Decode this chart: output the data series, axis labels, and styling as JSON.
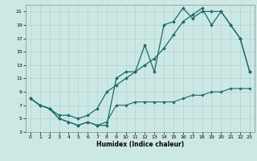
{
  "xlabel": "Humidex (Indice chaleur)",
  "bg_color": "#cce8e4",
  "grid_color": "#aacfcb",
  "line_color": "#1a6b6a",
  "xlim": [
    -0.5,
    23.5
  ],
  "ylim": [
    3,
    22
  ],
  "xticks": [
    0,
    1,
    2,
    3,
    4,
    5,
    6,
    7,
    8,
    9,
    10,
    11,
    12,
    13,
    14,
    15,
    16,
    17,
    18,
    19,
    20,
    21,
    22,
    23
  ],
  "yticks": [
    3,
    5,
    7,
    9,
    11,
    13,
    15,
    17,
    19,
    21
  ],
  "line1_x": [
    0,
    1,
    2,
    3,
    4,
    5,
    6,
    7,
    8,
    9,
    10,
    11,
    12,
    13,
    14,
    15,
    16,
    17,
    18,
    19,
    20,
    21,
    22,
    23
  ],
  "line1_y": [
    8,
    7,
    6.5,
    5,
    4.5,
    4,
    4.5,
    4,
    4,
    11,
    12,
    12,
    16,
    12,
    19,
    19.5,
    21.5,
    20,
    21,
    21,
    21,
    19,
    17,
    12
  ],
  "line2_x": [
    0,
    1,
    2,
    3,
    4,
    5,
    6,
    7,
    8,
    9,
    10,
    11,
    12,
    13,
    14,
    15,
    16,
    17,
    18,
    19,
    20,
    21,
    22,
    23
  ],
  "line2_y": [
    8,
    7,
    6.5,
    5.5,
    5.5,
    5,
    5.5,
    6.5,
    9,
    10,
    11,
    12,
    13,
    14,
    15.5,
    17.5,
    19.5,
    20.5,
    21.5,
    19,
    21,
    19,
    17,
    12
  ],
  "line3_x": [
    0,
    1,
    2,
    3,
    4,
    5,
    6,
    7,
    8,
    9,
    10,
    11,
    12,
    13,
    14,
    15,
    16,
    17,
    18,
    19,
    20,
    21,
    22,
    23
  ],
  "line3_y": [
    8,
    7,
    6.5,
    5,
    4.5,
    4,
    4.5,
    4,
    4.5,
    7,
    7,
    7.5,
    7.5,
    7.5,
    7.5,
    7.5,
    8,
    8.5,
    8.5,
    9,
    9,
    9.5,
    9.5,
    9.5
  ]
}
